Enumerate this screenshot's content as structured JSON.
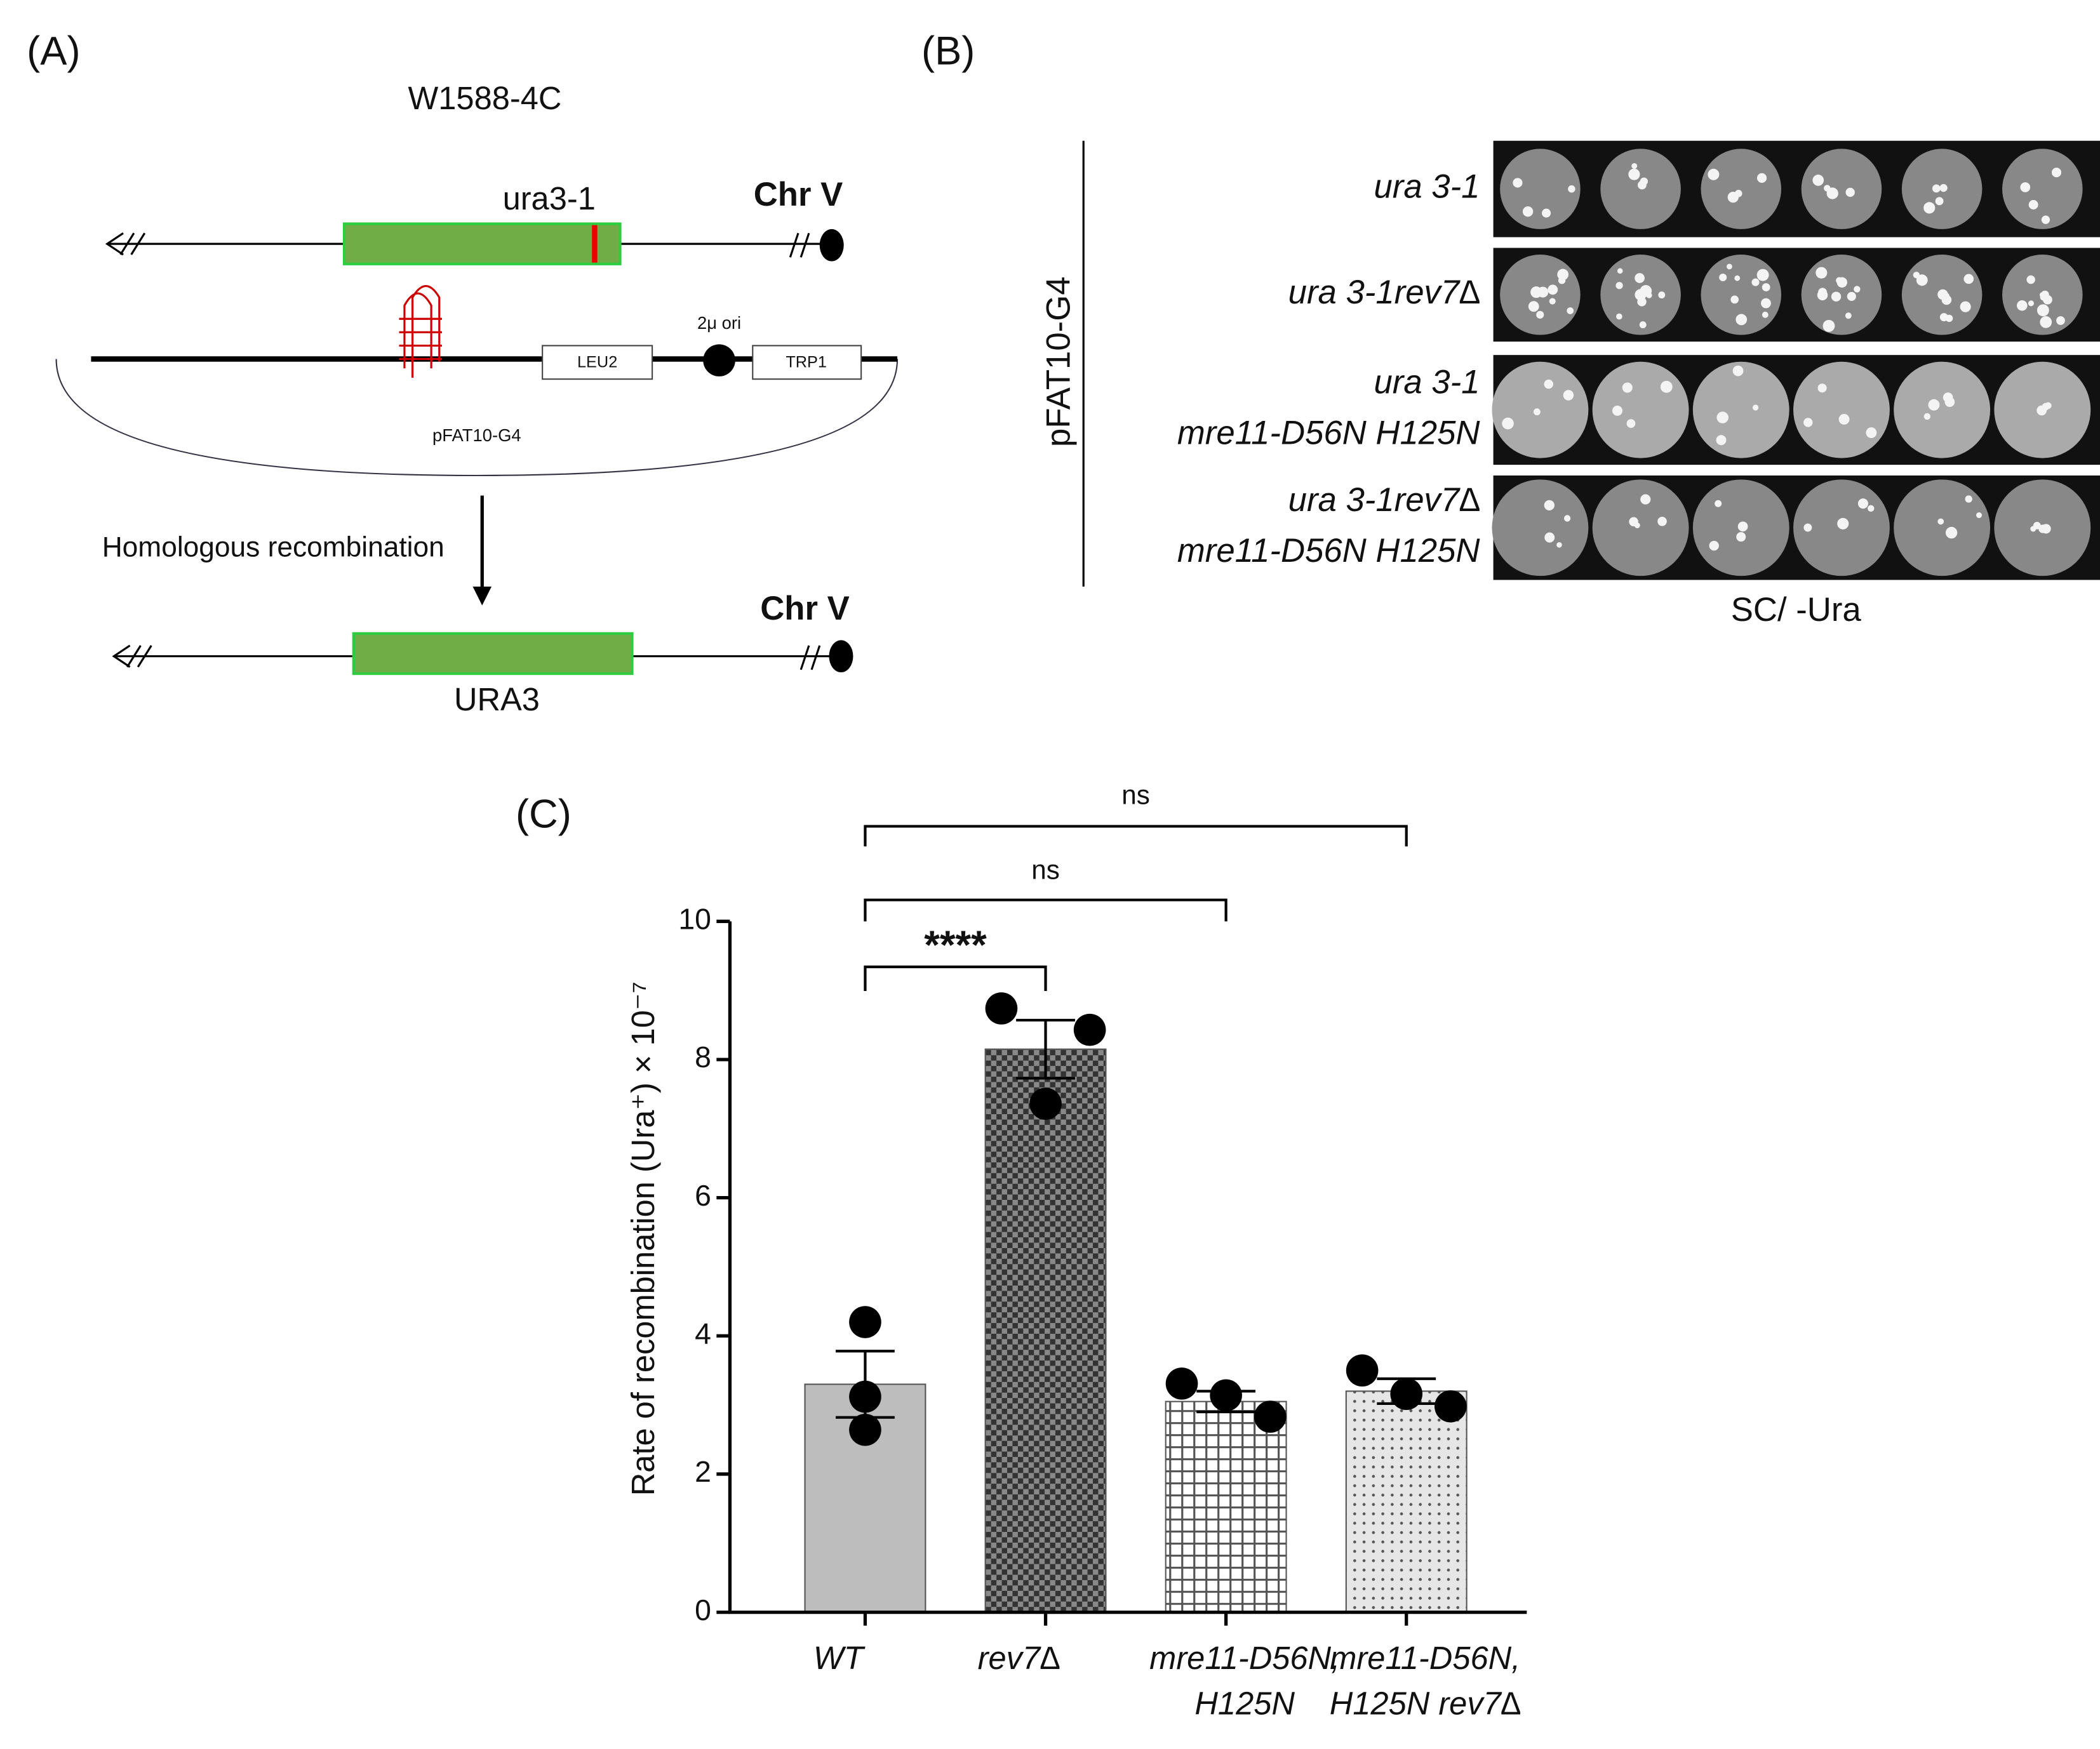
{
  "panel_a": {
    "label": "(A)",
    "strain": "W1588-4C",
    "allele": "ura3-1",
    "chromosome": "Chr V",
    "origin": "2μ ori",
    "marker_1": "LEU2",
    "marker_2": "TRP1",
    "plasmid": "pFAT10-G4",
    "process": "Homologous recombination",
    "chromosome_after": "Chr V",
    "gene_after": "URA3"
  },
  "panel_b": {
    "label": "(B)",
    "plasmid": "pFAT10-G4",
    "rows": [
      [
        "ura 3-1"
      ],
      [
        "ura 3-1rev7∆"
      ],
      [
        "ura 3-1",
        "mre11-D56N H125N"
      ],
      [
        "ura 3-1rev7∆",
        "mre11-D56N H125N"
      ]
    ],
    "medium": "SC/ -Ura"
  },
  "chart_data": {
    "type": "bar",
    "label": "(C)",
    "ylabel": "Rate of recombination (Ura⁺) × 10⁻⁷",
    "categories": [
      [
        "WT"
      ],
      [
        "rev7∆"
      ],
      [
        "mre11-D56N,",
        "H125N"
      ],
      [
        "mre11-D56N,",
        "H125N rev7∆"
      ]
    ],
    "values": [
      3.3,
      8.15,
      3.05,
      3.2
    ],
    "errors": [
      0.48,
      0.42,
      0.15,
      0.18
    ],
    "points": [
      [
        4.2,
        3.12,
        2.64
      ],
      [
        8.74,
        8.43,
        7.36
      ],
      [
        3.31,
        2.83,
        3.14
      ],
      [
        3.5,
        2.98,
        3.16
      ]
    ],
    "bar_styles": [
      {
        "fill": "#bdbdbd",
        "pattern": "none"
      },
      {
        "fill": "#555555",
        "pattern": "checker"
      },
      {
        "fill": "#ffffff",
        "pattern": "grid"
      },
      {
        "fill": "#e6e6e6",
        "pattern": "dots"
      }
    ],
    "ylim": [
      0,
      10
    ],
    "yticks": [
      0,
      2,
      4,
      6,
      8,
      10
    ],
    "annotations": [
      {
        "text": "****",
        "from": 0,
        "to": 1
      },
      {
        "text": "ns",
        "from": 0,
        "to": 2
      },
      {
        "text": "ns",
        "from": 0,
        "to": 3
      }
    ]
  }
}
